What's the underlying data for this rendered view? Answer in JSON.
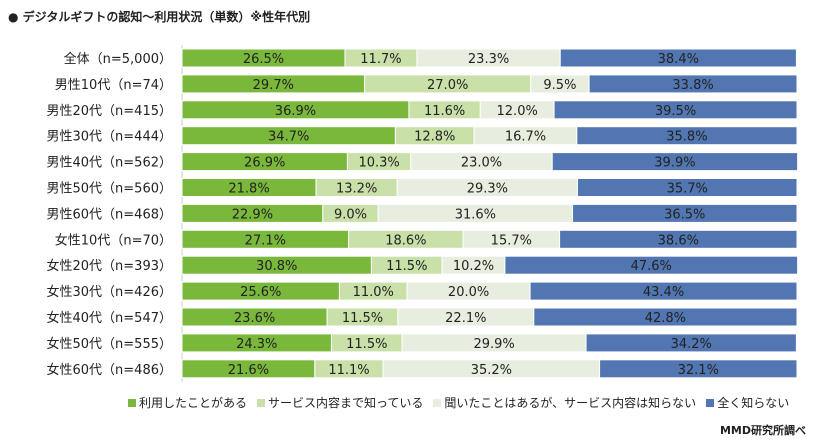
{
  "chart_data": {
    "type": "bar",
    "orientation": "horizontal-stacked-100",
    "title": "● デジタルギフトの認知～利用状況（単数）※性年代別",
    "categories": [
      "全体（n=5,000）",
      "男性10代（n=74）",
      "男性20代（n=415）",
      "男性30代（n=444）",
      "男性40代（n=562）",
      "男性50代（n=560）",
      "男性60代（n=468）",
      "女性10代（n=70）",
      "女性20代（n=393）",
      "女性30代（n=426）",
      "女性40代（n=547）",
      "女性50代（n=555）",
      "女性60代（n=486）"
    ],
    "series": [
      {
        "name": "利用したことがある",
        "color": "#7ab83c",
        "values": [
          26.5,
          29.7,
          36.9,
          34.7,
          26.9,
          21.8,
          22.9,
          27.1,
          30.8,
          25.6,
          23.6,
          24.3,
          21.6
        ]
      },
      {
        "name": "サービス内容まで知っている",
        "color": "#c9e0a9",
        "values": [
          11.7,
          27.0,
          11.6,
          12.8,
          10.3,
          13.2,
          9.0,
          18.6,
          11.5,
          11.0,
          11.5,
          11.5,
          11.1
        ]
      },
      {
        "name": "聞いたことはあるが、サービス内容は知らない",
        "color": "#e7eedf",
        "values": [
          23.3,
          9.5,
          12.0,
          16.7,
          23.0,
          29.3,
          31.6,
          15.7,
          10.2,
          20.0,
          22.1,
          29.9,
          35.2
        ]
      },
      {
        "name": "全く知らない",
        "color": "#5176b1",
        "values": [
          38.4,
          33.8,
          39.5,
          35.8,
          39.9,
          35.7,
          36.5,
          38.6,
          47.6,
          43.4,
          42.8,
          34.2,
          32.1
        ]
      }
    ],
    "xlim": [
      0,
      100
    ],
    "legend_position": "bottom"
  },
  "source": "MMD研究所調べ"
}
